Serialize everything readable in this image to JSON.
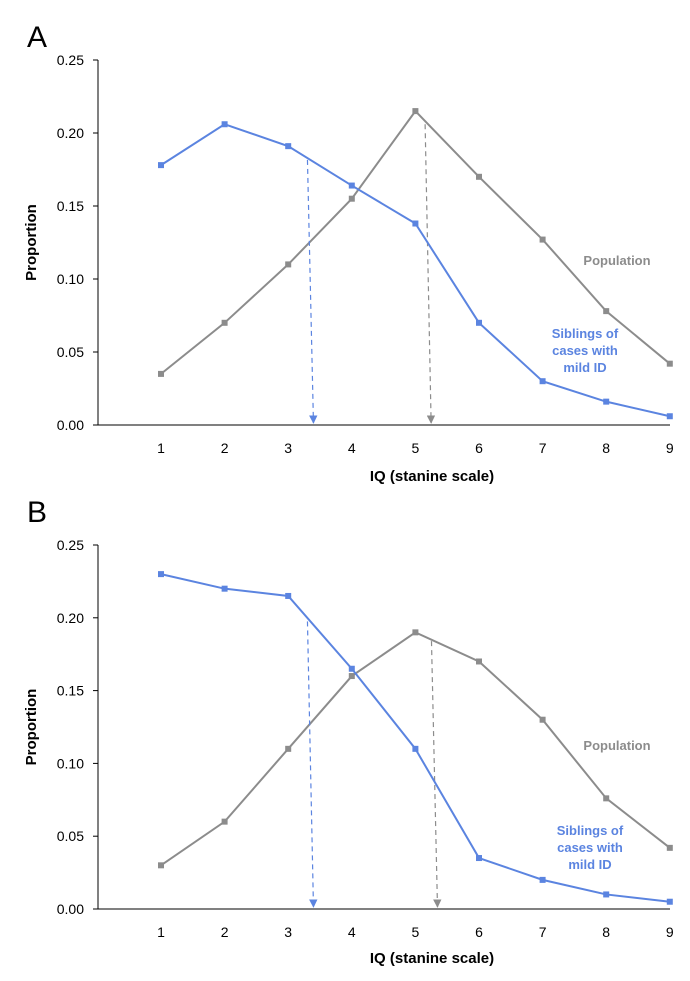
{
  "chart_data": [
    {
      "panel": "A",
      "type": "line",
      "xlabel": "IQ (stanine scale)",
      "ylabel": "Proportion",
      "ylim": [
        0,
        0.25
      ],
      "yticks": [
        "0.00",
        "0.05",
        "0.10",
        "0.15",
        "0.20",
        "0.25"
      ],
      "x": [
        1,
        2,
        3,
        4,
        5,
        6,
        7,
        8,
        9
      ],
      "series": [
        {
          "name": "Population",
          "color": "#8c8c8c",
          "values": [
            0.035,
            0.07,
            0.11,
            0.155,
            0.215,
            0.17,
            0.127,
            0.078,
            0.042
          ],
          "mean": 5.2
        },
        {
          "name": "Siblings of cases with mild ID",
          "label_lines": [
            "Siblings of",
            "cases with",
            "mild ID"
          ],
          "color": "#5b84e0",
          "values": [
            0.178,
            0.206,
            0.191,
            0.164,
            0.138,
            0.07,
            0.03,
            0.016,
            0.006
          ],
          "mean": 3.35
        }
      ]
    },
    {
      "panel": "B",
      "type": "line",
      "xlabel": "IQ (stanine scale)",
      "ylabel": "Proportion",
      "ylim": [
        0,
        0.25
      ],
      "yticks": [
        "0.00",
        "0.05",
        "0.10",
        "0.15",
        "0.20",
        "0.25"
      ],
      "x": [
        1,
        2,
        3,
        4,
        5,
        6,
        7,
        8,
        9
      ],
      "series": [
        {
          "name": "Population",
          "color": "#8c8c8c",
          "values": [
            0.03,
            0.06,
            0.11,
            0.16,
            0.19,
            0.17,
            0.13,
            0.076,
            0.042
          ],
          "mean": 5.3
        },
        {
          "name": "Siblings of cases with mild ID",
          "label_lines": [
            "Siblings of",
            "cases with",
            "mild ID"
          ],
          "color": "#5b84e0",
          "values": [
            0.23,
            0.22,
            0.215,
            0.165,
            0.11,
            0.035,
            0.02,
            0.01,
            0.005
          ],
          "mean": 3.35
        }
      ]
    }
  ]
}
